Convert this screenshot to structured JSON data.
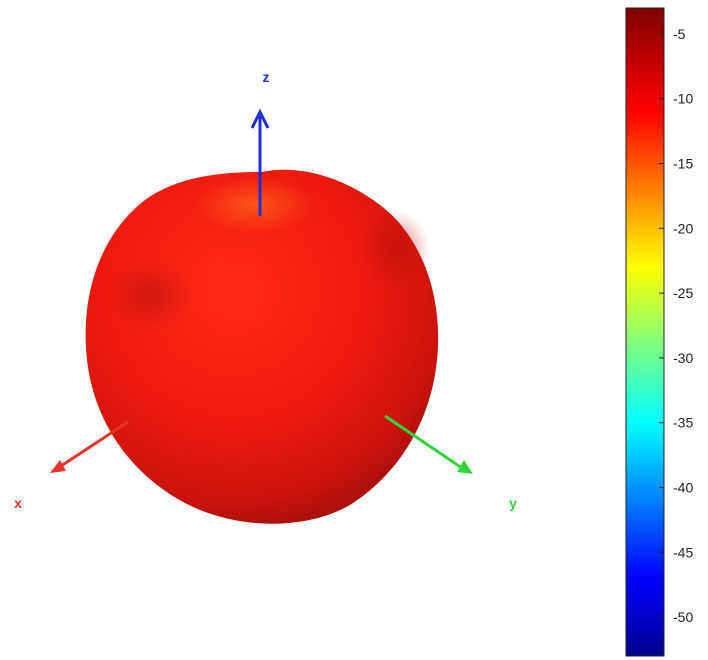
{
  "chart_data": {
    "type": "3d-radiation-pattern",
    "axes": {
      "x": {
        "label": "x",
        "color": "#e8322a"
      },
      "y": {
        "label": "y",
        "color": "#2fd63a"
      },
      "z": {
        "label": "z",
        "color": "#1c2fd6"
      }
    },
    "surface": {
      "shape": "near-spherical blob",
      "dominant_level": -8,
      "color": "#e81a10"
    },
    "colorbar": {
      "range": [
        -53,
        -3
      ],
      "ticks": [
        -5,
        -10,
        -15,
        -20,
        -25,
        -30,
        -35,
        -40,
        -45,
        -50
      ],
      "colormap": "jet"
    }
  }
}
